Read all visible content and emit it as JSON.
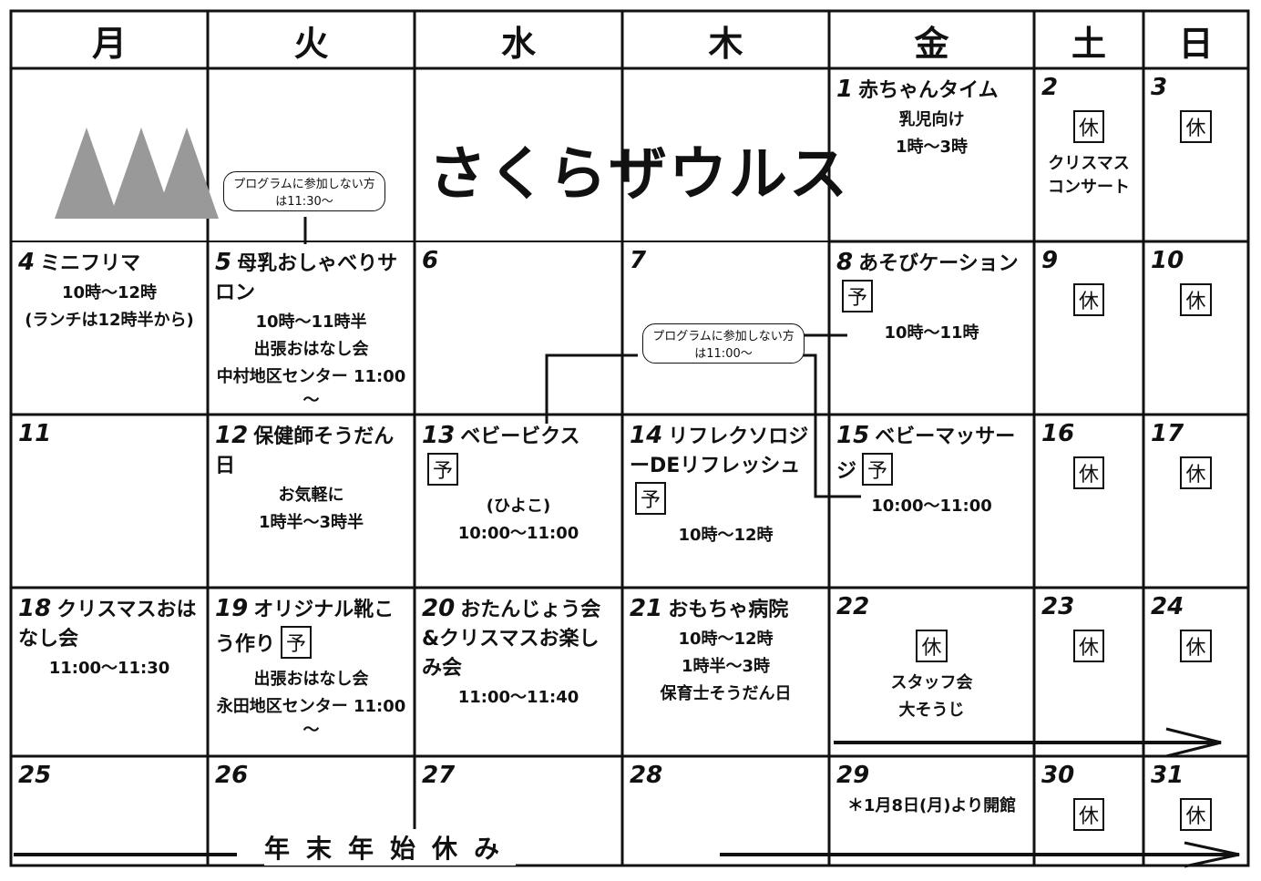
{
  "title": "さくらザウルス",
  "weekdays": [
    "月",
    "火",
    "水",
    "木",
    "金",
    "土",
    "日"
  ],
  "closed_label": "休",
  "reserve_label": "予",
  "callouts": [
    "プログラムに参加しない方は11:30～",
    "プログラムに参加しない方は11:00～"
  ],
  "banner": "年末年始休み",
  "cells": [
    {
      "day": 1,
      "title": "赤ちゃんタイム",
      "lines": [
        "乳児向け",
        "1時～3時"
      ]
    },
    {
      "day": 2,
      "closed": true,
      "lines": [
        "クリスマスコンサート"
      ]
    },
    {
      "day": 3,
      "closed": true
    },
    {
      "day": 4,
      "title": "ミニフリマ",
      "lines": [
        "10時～12時",
        "(ランチは12時半から)"
      ]
    },
    {
      "day": 5,
      "title": "母乳おしゃべりサロン",
      "lines": [
        "10時～11時半",
        "出張おはなし会",
        "中村地区センター 11:00～"
      ]
    },
    {
      "day": 6
    },
    {
      "day": 7
    },
    {
      "day": 8,
      "title": "あそびケーション",
      "reserve": true,
      "lines": [
        "10時～11時"
      ]
    },
    {
      "day": 9,
      "closed": true
    },
    {
      "day": 10,
      "closed": true
    },
    {
      "day": 11
    },
    {
      "day": 12,
      "title": "保健師そうだん日",
      "lines": [
        "お気軽に",
        "1時半～3時半"
      ]
    },
    {
      "day": 13,
      "title": "ベビービクス",
      "reserve": true,
      "lines": [
        "(ひよこ)",
        "10:00～11:00"
      ]
    },
    {
      "day": 14,
      "title": "リフレクソロジーDEリフレッシュ",
      "reserve": true,
      "lines": [
        "10時～12時"
      ]
    },
    {
      "day": 15,
      "title": "ベビーマッサージ",
      "reserve": true,
      "lines": [
        "10:00～11:00"
      ]
    },
    {
      "day": 16,
      "closed": true
    },
    {
      "day": 17,
      "closed": true
    },
    {
      "day": 18,
      "title": "クリスマスおはなし会",
      "lines": [
        "11:00～11:30"
      ]
    },
    {
      "day": 19,
      "title": "オリジナル靴こう作り",
      "reserve": true,
      "lines": [
        "出張おはなし会",
        "永田地区センター 11:00～"
      ]
    },
    {
      "day": 20,
      "title": "おたんじょう会&クリスマスお楽しみ会",
      "lines": [
        "11:00～11:40"
      ]
    },
    {
      "day": 21,
      "title": "おもちゃ病院",
      "lines": [
        "10時～12時",
        "1時半～3時",
        "保育士そうだん日"
      ]
    },
    {
      "day": 22,
      "closed": true,
      "lines": [
        "スタッフ会",
        "大そうじ"
      ]
    },
    {
      "day": 23,
      "closed": true
    },
    {
      "day": 24,
      "closed": true
    },
    {
      "day": 25
    },
    {
      "day": 26
    },
    {
      "day": 27
    },
    {
      "day": 28
    },
    {
      "day": 29,
      "lines": [
        "＊1月8日(月)より開館"
      ]
    },
    {
      "day": 30,
      "closed": true
    },
    {
      "day": 31,
      "closed": true
    }
  ]
}
